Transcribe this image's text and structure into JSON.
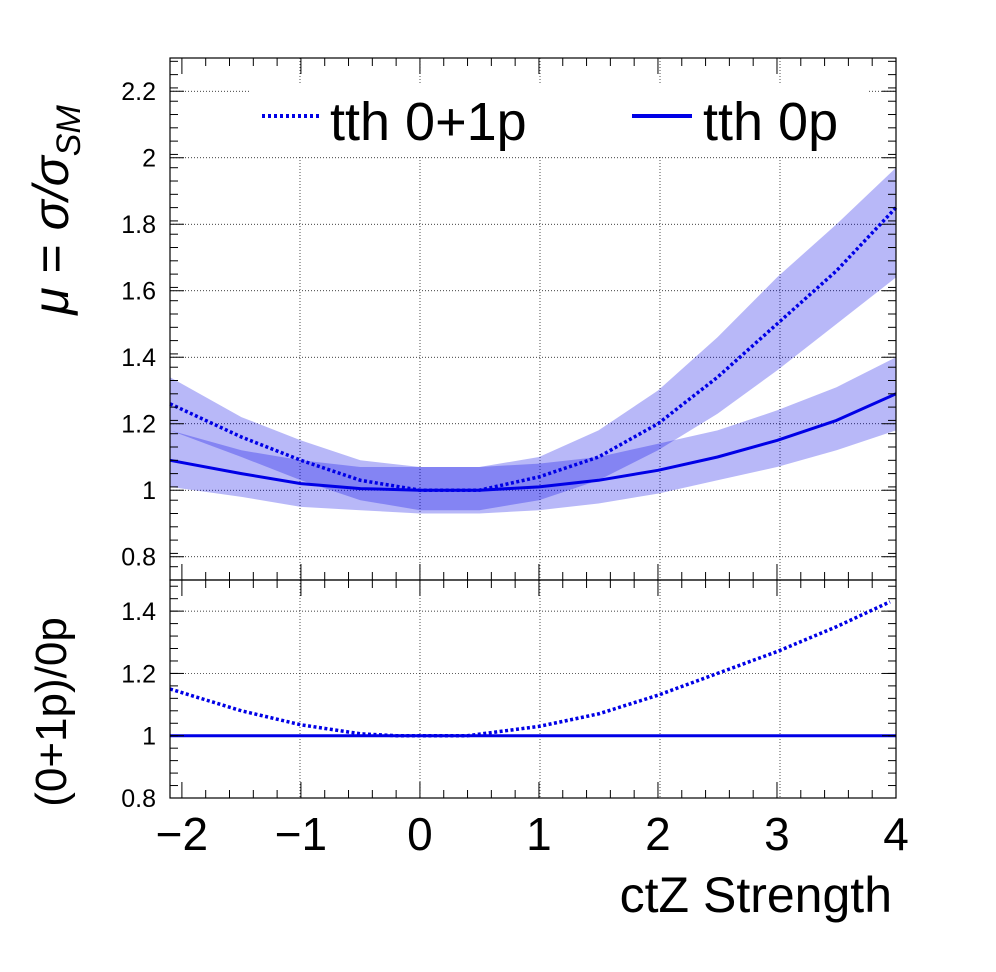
{
  "chart_data": [
    {
      "type": "line",
      "panel": "top",
      "ylabel": "μ = σ/σ_SM",
      "ylabel_parts": {
        "mu": "μ",
        "eq": " = ",
        "sig": "σ/σ",
        "sub": "SM"
      },
      "xlim": [
        -2.1,
        4
      ],
      "ylim": [
        0.73,
        2.3
      ],
      "yticks": [
        0.8,
        1,
        1.2,
        1.4,
        1.6,
        1.8,
        2,
        2.2
      ],
      "ytick_labels": [
        "0.8",
        "1",
        "1.2",
        "1.4",
        "1.6",
        "1.8",
        "2",
        "2.2"
      ],
      "grid": true,
      "legend_position": "top",
      "series": [
        {
          "name": "tth 0+1p",
          "style": "dotted",
          "color": "#0000e6",
          "x": [
            -2.1,
            -1.5,
            -1,
            -0.5,
            0,
            0.5,
            1,
            1.5,
            2,
            2.5,
            3,
            3.5,
            4
          ],
          "y": [
            1.26,
            1.16,
            1.09,
            1.03,
            1.0,
            1.0,
            1.04,
            1.1,
            1.2,
            1.34,
            1.5,
            1.66,
            1.85
          ],
          "band_lower": [
            1.18,
            1.1,
            1.03,
            0.97,
            0.94,
            0.94,
            0.97,
            1.03,
            1.12,
            1.23,
            1.36,
            1.5,
            1.64
          ],
          "band_upper": [
            1.34,
            1.22,
            1.15,
            1.09,
            1.07,
            1.07,
            1.1,
            1.18,
            1.3,
            1.46,
            1.64,
            1.8,
            1.97
          ]
        },
        {
          "name": "tth 0p",
          "style": "solid",
          "color": "#0000e6",
          "x": [
            -2.1,
            -1.5,
            -1,
            -0.5,
            0,
            0.5,
            1,
            1.5,
            2,
            2.5,
            3,
            3.5,
            4
          ],
          "y": [
            1.09,
            1.05,
            1.02,
            1.005,
            1.0,
            1.0,
            1.01,
            1.03,
            1.06,
            1.1,
            1.15,
            1.21,
            1.29
          ],
          "band_lower": [
            1.01,
            0.98,
            0.95,
            0.94,
            0.93,
            0.93,
            0.94,
            0.96,
            0.99,
            1.03,
            1.07,
            1.12,
            1.18
          ],
          "band_upper": [
            1.18,
            1.12,
            1.09,
            1.07,
            1.07,
            1.07,
            1.08,
            1.1,
            1.14,
            1.18,
            1.24,
            1.31,
            1.4
          ]
        }
      ]
    },
    {
      "type": "line",
      "panel": "ratio",
      "ylabel": "(0+1p)/0p",
      "xlabel": "ctZ Strength",
      "xlim": [
        -2.1,
        4
      ],
      "ylim": [
        0.8,
        1.5
      ],
      "xticks": [
        -2,
        -1,
        0,
        1,
        2,
        3,
        4
      ],
      "xtick_labels": [
        "−2",
        "−1",
        "0",
        "1",
        "2",
        "3",
        "4"
      ],
      "yticks": [
        0.8,
        1,
        1.2,
        1.4
      ],
      "ytick_labels": [
        "0.8",
        "1",
        "1.2",
        "1.4"
      ],
      "grid": true,
      "series": [
        {
          "name": "",
          "style": "dotted",
          "color": "#0000e6",
          "x": [
            -2.1,
            -1.5,
            -1,
            -0.5,
            -0.2,
            0,
            0.4,
            1,
            1.5,
            2,
            2.5,
            3,
            3.5,
            3.95
          ],
          "y": [
            1.15,
            1.08,
            1.035,
            1.006,
            1.0,
            1.0,
            1.0,
            1.03,
            1.07,
            1.13,
            1.2,
            1.27,
            1.35,
            1.43
          ]
        },
        {
          "name": "",
          "style": "solid",
          "color": "#0000e6",
          "x": [
            -2.1,
            4
          ],
          "y": [
            1.0,
            1.0
          ]
        }
      ]
    }
  ]
}
